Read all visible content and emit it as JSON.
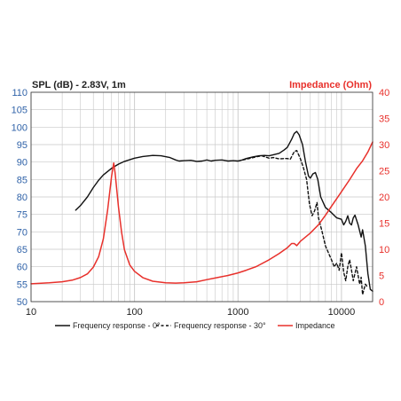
{
  "chart_data": {
    "type": "line",
    "left_axis_title": "SPL (dB) - 2.83V, 1m",
    "right_axis_title": "Impedance (Ohm)",
    "x_scale": "log",
    "xlim": [
      10,
      20000
    ],
    "x_ticks": [
      10,
      100,
      1000,
      10000
    ],
    "x_tick_labels": [
      "10",
      "100",
      "1000",
      "10000"
    ],
    "ylim_left": [
      50,
      110
    ],
    "y_ticks_left": [
      "110",
      "105",
      "100",
      "95",
      "90",
      "85",
      "80",
      "75",
      "70",
      "65",
      "60",
      "55",
      "50"
    ],
    "ylim_right": [
      0,
      40
    ],
    "y_ticks_right": [
      "40",
      "35",
      "30",
      "25",
      "20",
      "15",
      "10",
      "5",
      "0"
    ],
    "grid": true,
    "legend_position": "bottom",
    "colors": {
      "spl": "#111111",
      "impedance": "#e8302b",
      "grid": "#c8c8c8",
      "right_axis": "#e8302b"
    },
    "series": [
      {
        "name": "Frequency response - 0°",
        "axis": "left",
        "style": "solid",
        "color": "#111111",
        "points": [
          [
            27,
            76.2
          ],
          [
            30,
            77.5
          ],
          [
            35,
            80
          ],
          [
            40,
            82.7
          ],
          [
            45,
            84.8
          ],
          [
            50,
            86.3
          ],
          [
            60,
            88.2
          ],
          [
            70,
            89.4
          ],
          [
            80,
            90.2
          ],
          [
            100,
            91.1
          ],
          [
            120,
            91.6
          ],
          [
            150,
            91.9
          ],
          [
            180,
            91.8
          ],
          [
            220,
            91.3
          ],
          [
            250,
            90.6
          ],
          [
            270,
            90.3
          ],
          [
            300,
            90.4
          ],
          [
            350,
            90.5
          ],
          [
            400,
            90.2
          ],
          [
            450,
            90.3
          ],
          [
            500,
            90.6
          ],
          [
            550,
            90.3
          ],
          [
            600,
            90.5
          ],
          [
            700,
            90.6
          ],
          [
            800,
            90.3
          ],
          [
            900,
            90.4
          ],
          [
            1000,
            90.3
          ],
          [
            1100,
            90.6
          ],
          [
            1200,
            91
          ],
          [
            1400,
            91.5
          ],
          [
            1600,
            91.8
          ],
          [
            1800,
            91.9
          ],
          [
            2000,
            91.8
          ],
          [
            2200,
            92.1
          ],
          [
            2500,
            92.5
          ],
          [
            2800,
            93.5
          ],
          [
            3000,
            94.2
          ],
          [
            3300,
            96.5
          ],
          [
            3500,
            98.2
          ],
          [
            3700,
            98.8
          ],
          [
            3900,
            97.8
          ],
          [
            4200,
            95
          ],
          [
            4500,
            90
          ],
          [
            4800,
            86
          ],
          [
            5000,
            85.4
          ],
          [
            5300,
            86.6
          ],
          [
            5600,
            87
          ],
          [
            5900,
            85
          ],
          [
            6300,
            80
          ],
          [
            7000,
            77
          ],
          [
            8000,
            75.5
          ],
          [
            9000,
            74
          ],
          [
            10000,
            73.6
          ],
          [
            10500,
            72
          ],
          [
            11000,
            73
          ],
          [
            11500,
            74.6
          ],
          [
            12000,
            72.5
          ],
          [
            12500,
            72
          ],
          [
            13000,
            74
          ],
          [
            13500,
            74.8
          ],
          [
            14500,
            72
          ],
          [
            15500,
            68.5
          ],
          [
            16000,
            70.6
          ],
          [
            17000,
            66
          ],
          [
            18000,
            58
          ],
          [
            19000,
            53.5
          ],
          [
            20000,
            53
          ]
        ]
      },
      {
        "name": "Frequency response - 30°",
        "axis": "left",
        "style": "dashed",
        "color": "#111111",
        "points": [
          [
            1000,
            90.3
          ],
          [
            1200,
            90.8
          ],
          [
            1500,
            91.5
          ],
          [
            1700,
            91.8
          ],
          [
            2000,
            91.1
          ],
          [
            2200,
            91.3
          ],
          [
            2500,
            90.9
          ],
          [
            2800,
            91
          ],
          [
            3000,
            91
          ],
          [
            3200,
            90.8
          ],
          [
            3500,
            93
          ],
          [
            3700,
            93.3
          ],
          [
            4000,
            91
          ],
          [
            4300,
            88.3
          ],
          [
            4600,
            85
          ],
          [
            4900,
            78
          ],
          [
            5200,
            74.6
          ],
          [
            5500,
            76
          ],
          [
            5800,
            78.4
          ],
          [
            6000,
            74
          ],
          [
            6500,
            70
          ],
          [
            7000,
            66
          ],
          [
            8000,
            62
          ],
          [
            8500,
            60
          ],
          [
            9000,
            61
          ],
          [
            9500,
            59
          ],
          [
            10000,
            64
          ],
          [
            10500,
            58.5
          ],
          [
            11000,
            56
          ],
          [
            11500,
            60
          ],
          [
            12000,
            62
          ],
          [
            12500,
            59
          ],
          [
            13000,
            56
          ],
          [
            14000,
            60
          ],
          [
            15000,
            55
          ],
          [
            15500,
            57
          ],
          [
            16000,
            52
          ],
          [
            17000,
            55
          ],
          [
            18000,
            54
          ]
        ]
      },
      {
        "name": "Impedance",
        "axis": "right",
        "style": "solid",
        "color": "#e8302b",
        "points": [
          [
            10,
            3.4
          ],
          [
            12,
            3.5
          ],
          [
            15,
            3.6
          ],
          [
            20,
            3.8
          ],
          [
            25,
            4.1
          ],
          [
            30,
            4.6
          ],
          [
            35,
            5.3
          ],
          [
            40,
            6.6
          ],
          [
            45,
            8.6
          ],
          [
            50,
            12
          ],
          [
            55,
            17.5
          ],
          [
            60,
            24
          ],
          [
            63,
            26.5
          ],
          [
            65,
            24.5
          ],
          [
            70,
            18
          ],
          [
            75,
            13.2
          ],
          [
            80,
            9.9
          ],
          [
            90,
            7
          ],
          [
            100,
            5.8
          ],
          [
            120,
            4.6
          ],
          [
            150,
            3.9
          ],
          [
            200,
            3.6
          ],
          [
            250,
            3.55
          ],
          [
            300,
            3.6
          ],
          [
            400,
            3.8
          ],
          [
            500,
            4.2
          ],
          [
            600,
            4.5
          ],
          [
            800,
            5
          ],
          [
            1000,
            5.5
          ],
          [
            1200,
            6
          ],
          [
            1500,
            6.7
          ],
          [
            2000,
            8
          ],
          [
            2500,
            9.2
          ],
          [
            3000,
            10.3
          ],
          [
            3300,
            11.1
          ],
          [
            3500,
            11.1
          ],
          [
            3700,
            10.7
          ],
          [
            4000,
            11.5
          ],
          [
            5000,
            13.1
          ],
          [
            6000,
            14.7
          ],
          [
            7000,
            16.5
          ],
          [
            8000,
            18.2
          ],
          [
            9000,
            19.7
          ],
          [
            10000,
            21
          ],
          [
            12000,
            23.3
          ],
          [
            14000,
            25.4
          ],
          [
            16000,
            26.9
          ],
          [
            18000,
            28.6
          ],
          [
            20000,
            30.5
          ]
        ]
      }
    ]
  }
}
